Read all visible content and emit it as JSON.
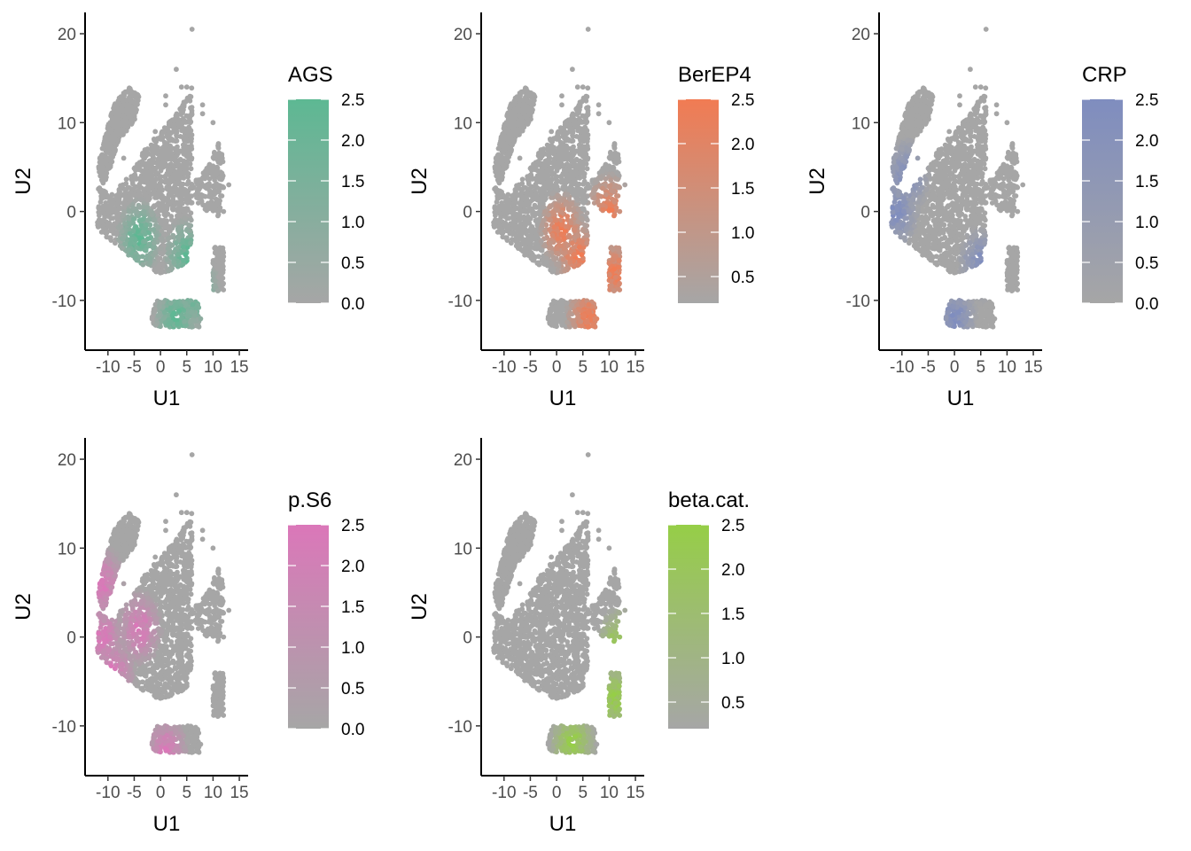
{
  "chart_data": [
    {
      "type": "scatter",
      "xlabel": "U1",
      "ylabel": "U2",
      "xlim": [
        -13,
        16
      ],
      "ylim": [
        -15,
        22
      ],
      "xticks": [
        -10,
        -5,
        0,
        5,
        10,
        15
      ],
      "xtick_labels": [
        "-10",
        "-5",
        "0",
        "5",
        "10",
        "15"
      ],
      "yticks": [
        -10,
        0,
        10,
        20
      ],
      "ytick_labels": [
        "-10",
        "0",
        "10",
        "20"
      ],
      "legend": {
        "title": "AGS",
        "low_color": "#a6a6a6",
        "high_color": "#5db893",
        "min": 0.0,
        "max": 2.5,
        "ticks": [
          0.0,
          0.5,
          1.0,
          1.5,
          2.0,
          2.5
        ],
        "tick_labels": [
          "0.0",
          "0.5",
          "1.0",
          "1.5",
          "2.0",
          "2.5"
        ],
        "placement": "right"
      },
      "high_regions": [
        [
          -4,
          -3
        ],
        [
          5,
          -5
        ],
        [
          3,
          -12
        ],
        [
          7,
          -9
        ]
      ]
    },
    {
      "type": "scatter",
      "xlabel": "U1",
      "ylabel": "U2",
      "xlim": [
        -13,
        16
      ],
      "ylim": [
        -15,
        22
      ],
      "xticks": [
        -10,
        -5,
        0,
        5,
        10,
        15
      ],
      "xtick_labels": [
        "-10",
        "-5",
        "0",
        "5",
        "10",
        "15"
      ],
      "yticks": [
        -10,
        0,
        10,
        20
      ],
      "ytick_labels": [
        "-10",
        "0",
        "10",
        "20"
      ],
      "legend": {
        "title": "BerEP4",
        "low_color": "#a6a6a6",
        "high_color": "#f17b53",
        "min": 0.2,
        "max": 2.5,
        "ticks": [
          0.5,
          1.0,
          1.5,
          2.0,
          2.5
        ],
        "tick_labels": [
          "0.5",
          "1.0",
          "1.5",
          "2.0",
          "2.5"
        ],
        "placement": "right"
      },
      "high_regions": [
        [
          4,
          -5
        ],
        [
          11,
          -7
        ],
        [
          6,
          -12
        ],
        [
          10,
          0
        ],
        [
          1,
          -2
        ]
      ]
    },
    {
      "type": "scatter",
      "xlabel": "U1",
      "ylabel": "U2",
      "xlim": [
        -13,
        16
      ],
      "ylim": [
        -15,
        22
      ],
      "xticks": [
        -10,
        -5,
        0,
        5,
        10,
        15
      ],
      "xtick_labels": [
        "-10",
        "-5",
        "0",
        "5",
        "10",
        "15"
      ],
      "yticks": [
        -10,
        0,
        10,
        20
      ],
      "ytick_labels": [
        "-10",
        "0",
        "10",
        "20"
      ],
      "legend": {
        "title": "CRP",
        "low_color": "#a6a6a6",
        "high_color": "#7f8dbf",
        "min": 0.0,
        "max": 2.5,
        "ticks": [
          0.0,
          0.5,
          1.0,
          1.5,
          2.0,
          2.5
        ],
        "tick_labels": [
          "0.0",
          "0.5",
          "1.0",
          "1.5",
          "2.0",
          "2.5"
        ],
        "placement": "right"
      },
      "high_regions": [
        [
          -11,
          0
        ],
        [
          -9,
          4
        ],
        [
          0,
          -12
        ],
        [
          5,
          -6
        ]
      ]
    },
    {
      "type": "scatter",
      "xlabel": "U1",
      "ylabel": "U2",
      "xlim": [
        -13,
        16
      ],
      "ylim": [
        -15,
        22
      ],
      "xticks": [
        -10,
        -5,
        0,
        5,
        10,
        15
      ],
      "xtick_labels": [
        "-10",
        "-5",
        "0",
        "5",
        "10",
        "15"
      ],
      "yticks": [
        -10,
        0,
        10,
        20
      ],
      "ytick_labels": [
        "-10",
        "0",
        "10",
        "20"
      ],
      "legend": {
        "title": "p.S6",
        "low_color": "#a6a6a6",
        "high_color": "#db77b9",
        "min": 0.0,
        "max": 2.5,
        "ticks": [
          0.0,
          0.5,
          1.0,
          1.5,
          2.0,
          2.5
        ],
        "tick_labels": [
          "0.0",
          "0.5",
          "1.0",
          "1.5",
          "2.0",
          "2.5"
        ],
        "placement": "right"
      },
      "high_regions": [
        [
          -11,
          0
        ],
        [
          -9,
          -4
        ],
        [
          -11,
          6
        ],
        [
          -4,
          1
        ],
        [
          1,
          -13
        ]
      ]
    },
    {
      "type": "scatter",
      "xlabel": "U1",
      "ylabel": "U2",
      "xlim": [
        -13,
        16
      ],
      "ylim": [
        -15,
        22
      ],
      "xticks": [
        -10,
        -5,
        0,
        5,
        10,
        15
      ],
      "xtick_labels": [
        "-10",
        "-5",
        "0",
        "5",
        "10",
        "15"
      ],
      "yticks": [
        -10,
        0,
        10,
        20
      ],
      "ytick_labels": [
        "-10",
        "0",
        "10",
        "20"
      ],
      "legend": {
        "title": "beta.cat.",
        "low_color": "#a6a6a6",
        "high_color": "#96ce47",
        "min": 0.2,
        "max": 2.5,
        "ticks": [
          0.5,
          1.0,
          1.5,
          2.0,
          2.5
        ],
        "tick_labels": [
          "0.5",
          "1.0",
          "1.5",
          "2.0",
          "2.5"
        ],
        "placement": "right"
      },
      "high_regions": [
        [
          3,
          -12
        ],
        [
          11,
          -7
        ],
        [
          12,
          -1
        ]
      ]
    }
  ]
}
